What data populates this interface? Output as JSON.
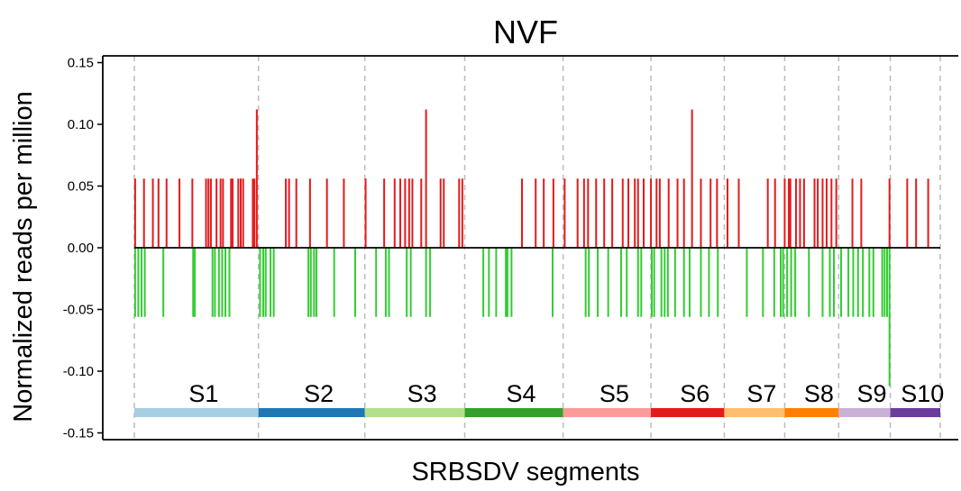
{
  "chart_data": {
    "type": "bar",
    "title": "NVF",
    "xlabel": "SRBSDV segments",
    "ylabel": "Normalized reads per million",
    "ylim": [
      -0.15,
      0.15
    ],
    "yticks": [
      0.15,
      0.1,
      0.05,
      0.0,
      -0.05,
      -0.1,
      -0.15
    ],
    "ytick_labels": [
      "0.15",
      "0.10",
      "0.05",
      "0.00",
      "-0.05",
      "-0.10",
      "-0.15"
    ],
    "xlim": [
      0,
      100
    ],
    "grid": "vertical dashed lines at segment boundaries",
    "segment_boundaries": [
      0,
      15.4,
      28.6,
      41.0,
      53.2,
      64.1,
      73.2,
      80.7,
      87.4,
      93.8,
      100
    ],
    "segments": [
      {
        "name": "S1",
        "start": 0,
        "end": 15.4,
        "color": "#a6cee3"
      },
      {
        "name": "S2",
        "start": 15.4,
        "end": 28.6,
        "color": "#1f78b4"
      },
      {
        "name": "S3",
        "start": 28.6,
        "end": 41.0,
        "color": "#b2df8a"
      },
      {
        "name": "S4",
        "start": 41.0,
        "end": 53.2,
        "color": "#33a02c"
      },
      {
        "name": "S5",
        "start": 53.2,
        "end": 64.1,
        "color": "#fb9a99"
      },
      {
        "name": "S6",
        "start": 64.1,
        "end": 73.2,
        "color": "#e31a1c"
      },
      {
        "name": "S7",
        "start": 73.2,
        "end": 80.7,
        "color": "#fdbf6f"
      },
      {
        "name": "S8",
        "start": 80.7,
        "end": 87.4,
        "color": "#ff7f00"
      },
      {
        "name": "S9",
        "start": 87.4,
        "end": 93.8,
        "color": "#cab2d6"
      },
      {
        "name": "S10",
        "start": 93.8,
        "end": 100,
        "color": "#6a3d9a"
      }
    ],
    "series": [
      {
        "strand": "positive",
        "color": "#e41a1c",
        "x": [
          0.1,
          1.2,
          2.3,
          3.0,
          4.0,
          5.6,
          7.2,
          8.9,
          9.2,
          9.5,
          10.2,
          10.7,
          11.0,
          12.0,
          12.2,
          12.9,
          13.2,
          13.5,
          14.7,
          14.9,
          15.2,
          18.8,
          19.2,
          20.1,
          21.8,
          23.9,
          26.0,
          28.7,
          31.0,
          32.3,
          33.0,
          33.6,
          34.1,
          34.5,
          35.6,
          36.2,
          38.0,
          38.4,
          40.3,
          40.7,
          48.1,
          49.8,
          50.8,
          52.0,
          53.4,
          55.0,
          55.8,
          56.3,
          57.3,
          58.3,
          59.3,
          60.6,
          61.3,
          62.1,
          62.5,
          63.2,
          64.1,
          64.8,
          65.2,
          66.3,
          67.4,
          68.2,
          69.2,
          70.3,
          71.5,
          72.3,
          73.6,
          75.0,
          78.6,
          79.5,
          80.7,
          81.2,
          81.4,
          82.1,
          82.6,
          83.1,
          84.4,
          84.8,
          85.4,
          85.9,
          86.5,
          87.1,
          89.1,
          90.2,
          93.7,
          95.9,
          97.0,
          98.5
        ],
        "values": [
          0.056,
          0.056,
          0.056,
          0.056,
          0.056,
          0.056,
          0.056,
          0.056,
          0.056,
          0.056,
          0.056,
          0.056,
          0.056,
          0.056,
          0.056,
          0.056,
          0.056,
          0.056,
          0.056,
          0.056,
          0.112,
          0.056,
          0.056,
          0.056,
          0.056,
          0.056,
          0.056,
          0.056,
          0.056,
          0.056,
          0.056,
          0.056,
          0.056,
          0.056,
          0.056,
          0.112,
          0.056,
          0.056,
          0.056,
          0.056,
          0.056,
          0.056,
          0.056,
          0.056,
          0.056,
          0.056,
          0.056,
          0.056,
          0.056,
          0.056,
          0.056,
          0.056,
          0.056,
          0.056,
          0.056,
          0.056,
          0.056,
          0.056,
          0.056,
          0.056,
          0.056,
          0.056,
          0.112,
          0.056,
          0.056,
          0.056,
          0.056,
          0.056,
          0.056,
          0.056,
          0.056,
          0.056,
          0.056,
          0.056,
          0.056,
          0.056,
          0.056,
          0.056,
          0.056,
          0.056,
          0.056,
          0.056,
          0.056,
          0.056,
          0.056,
          0.056,
          0.056,
          0.056
        ]
      },
      {
        "strand": "negative",
        "color": "#33cc33",
        "x": [
          0.1,
          0.5,
          0.9,
          1.3,
          3.6,
          7.3,
          7.5,
          9.7,
          10.0,
          10.5,
          10.9,
          11.3,
          11.8,
          15.6,
          16.0,
          16.3,
          16.9,
          17.3,
          21.6,
          21.9,
          22.3,
          22.6,
          24.8,
          27.4,
          30.0,
          31.2,
          31.6,
          33.8,
          34.3,
          36.2,
          36.7,
          43.3,
          44.0,
          44.9,
          46.1,
          46.3,
          46.8,
          51.9,
          56.0,
          56.4,
          57.5,
          58.8,
          60.4,
          61.1,
          62.5,
          62.9,
          64.2,
          64.5,
          65.4,
          65.8,
          66.2,
          67.1,
          68.2,
          68.9,
          70.3,
          71.3,
          72.4,
          76.0,
          78.0,
          79.4,
          80.2,
          80.5,
          81.0,
          81.5,
          82.0,
          83.7,
          85.4,
          86.3,
          86.8,
          87.7,
          88.6,
          89.2,
          89.8,
          90.4,
          91.2,
          91.7,
          92.8,
          93.1,
          93.4,
          93.7
        ],
        "values": [
          -0.056,
          -0.056,
          -0.056,
          -0.056,
          -0.056,
          -0.056,
          -0.056,
          -0.056,
          -0.056,
          -0.056,
          -0.056,
          -0.056,
          -0.056,
          -0.056,
          -0.056,
          -0.056,
          -0.056,
          -0.056,
          -0.056,
          -0.056,
          -0.056,
          -0.056,
          -0.056,
          -0.056,
          -0.056,
          -0.056,
          -0.056,
          -0.056,
          -0.056,
          -0.056,
          -0.056,
          -0.056,
          -0.056,
          -0.056,
          -0.056,
          -0.056,
          -0.056,
          -0.056,
          -0.056,
          -0.056,
          -0.056,
          -0.056,
          -0.056,
          -0.056,
          -0.056,
          -0.056,
          -0.056,
          -0.056,
          -0.056,
          -0.056,
          -0.056,
          -0.056,
          -0.056,
          -0.056,
          -0.056,
          -0.056,
          -0.056,
          -0.056,
          -0.056,
          -0.056,
          -0.056,
          -0.056,
          -0.056,
          -0.056,
          -0.056,
          -0.056,
          -0.056,
          -0.056,
          -0.056,
          -0.056,
          -0.056,
          -0.056,
          -0.056,
          -0.056,
          -0.056,
          -0.056,
          -0.056,
          -0.056,
          -0.056,
          -0.112
        ]
      }
    ],
    "colors": {
      "axis": "#000000",
      "grid": "#bbbbbb",
      "zero_line": "#000000"
    }
  }
}
